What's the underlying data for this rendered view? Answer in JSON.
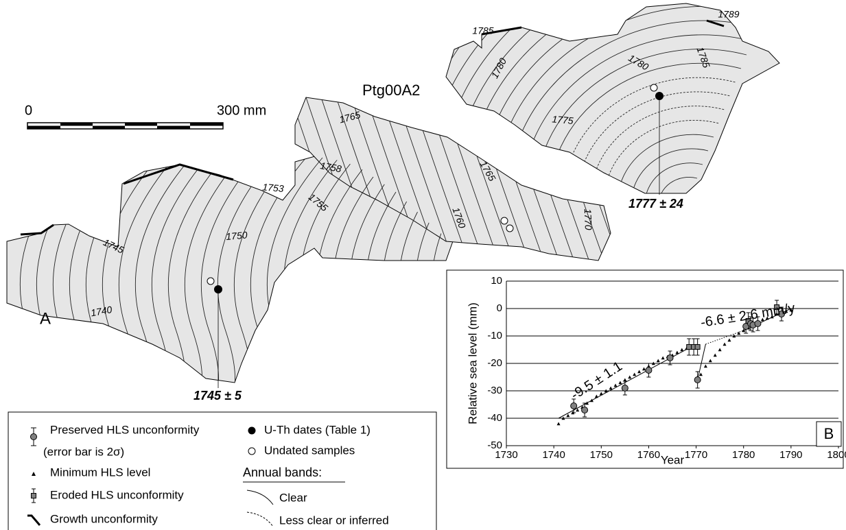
{
  "figure": {
    "sample_label": "Ptg00A2",
    "panel_label": "A",
    "scale_start": "0",
    "scale_end": "300 mm",
    "band_years": [
      "1785",
      "1789",
      "1780",
      "1780",
      "1785",
      "1765",
      "1775",
      "1758",
      "1765",
      "1753",
      "1755",
      "1760",
      "1770",
      "1750",
      "1745",
      "1740"
    ],
    "dates": [
      "1745 ± 5",
      "1777 ± 24"
    ]
  },
  "legend": {
    "error_note": "(error bar is 2σ)",
    "growth": "Growth unconformity",
    "dated": "U-Th dates (Table 1)",
    "undated": "Undated samples",
    "bands_title": "Annual bands:",
    "clear": "Clear",
    "inferred": "Less clear or inferred"
  },
  "chart_data": {
    "type": "scatter",
    "panel_label": "B",
    "xlabel": "Year",
    "ylabel": "Relative sea level (mm)",
    "xlim": [
      1730,
      1800
    ],
    "xticks": [
      1730,
      1740,
      1750,
      1760,
      1770,
      1780,
      1790,
      1800
    ],
    "ylim": [
      -50,
      10
    ],
    "yticks": [
      -50,
      -40,
      -30,
      -20,
      -10,
      0,
      10
    ],
    "grid": true,
    "series": [
      {
        "name": "Preserved HLS unconformity",
        "marker": "circle",
        "color": "#808080",
        "x": [
          1744.2,
          1746.5,
          1755,
          1760,
          1764.5,
          1770.3,
          1780.5,
          1781.5,
          1782,
          1783,
          1788
        ],
        "values": [
          -35.5,
          -37,
          -29,
          -22.5,
          -18,
          -26,
          -6.5,
          -5.5,
          -6,
          -5.5,
          -2
        ],
        "errors": [
          2.5,
          2.5,
          2.5,
          2.5,
          2.5,
          3,
          2.5,
          2.5,
          2.5,
          2.5,
          2.5
        ]
      },
      {
        "name": "Eroded HLS unconformity",
        "marker": "square",
        "color": "#808080",
        "x": [
          1768.5,
          1769.5,
          1770.3,
          1781,
          1787
        ],
        "values": [
          -14,
          -14,
          -14,
          -4.5,
          0.5
        ],
        "errors": [
          3,
          3,
          3,
          3,
          2.5
        ]
      },
      {
        "name": "Minimum HLS level",
        "marker": "triangle",
        "color": "#000000",
        "x": [
          1741,
          1742,
          1743,
          1744,
          1745,
          1746,
          1747,
          1748,
          1749,
          1750,
          1751,
          1752,
          1753,
          1754,
          1755,
          1756,
          1757,
          1758,
          1759,
          1760,
          1761,
          1762,
          1763,
          1764,
          1765,
          1766,
          1767,
          1768,
          1769,
          1771,
          1772,
          1773,
          1774,
          1775,
          1776,
          1777,
          1778,
          1779,
          1780,
          1781,
          1782,
          1783,
          1784,
          1785,
          1786,
          1787,
          1788,
          1789,
          1790
        ],
        "values": [
          -42,
          -40,
          -39,
          -38,
          -37,
          -36,
          -34.5,
          -33.5,
          -32,
          -31,
          -30,
          -29,
          -28,
          -27,
          -26,
          -25,
          -24,
          -23,
          -22,
          -21,
          -20,
          -19,
          -18,
          -17.5,
          -17,
          -16,
          -15,
          -14.5,
          -14,
          -24,
          -21,
          -19,
          -17,
          -15,
          -13,
          -11.5,
          -10,
          -9,
          -8,
          -7,
          -6,
          -5,
          -4,
          -3.5,
          -3,
          -2,
          -1.5,
          -1,
          -0.5
        ]
      }
    ],
    "trend_lines": [
      {
        "style": "solid",
        "x": [
          1741,
          1770
        ],
        "values": [
          -40,
          -13
        ]
      },
      {
        "style": "solid",
        "x": [
          1770.3,
          1772
        ],
        "values": [
          -26,
          -13
        ]
      },
      {
        "style": "dotted",
        "x": [
          1772,
          1780
        ],
        "values": [
          -13,
          -8
        ]
      },
      {
        "style": "solid",
        "x": [
          1780,
          1790
        ],
        "values": [
          -8,
          0
        ]
      }
    ],
    "annotations": [
      "-9.5 ± 1.1",
      "-6.6 ± 2.6 mm/y"
    ]
  }
}
